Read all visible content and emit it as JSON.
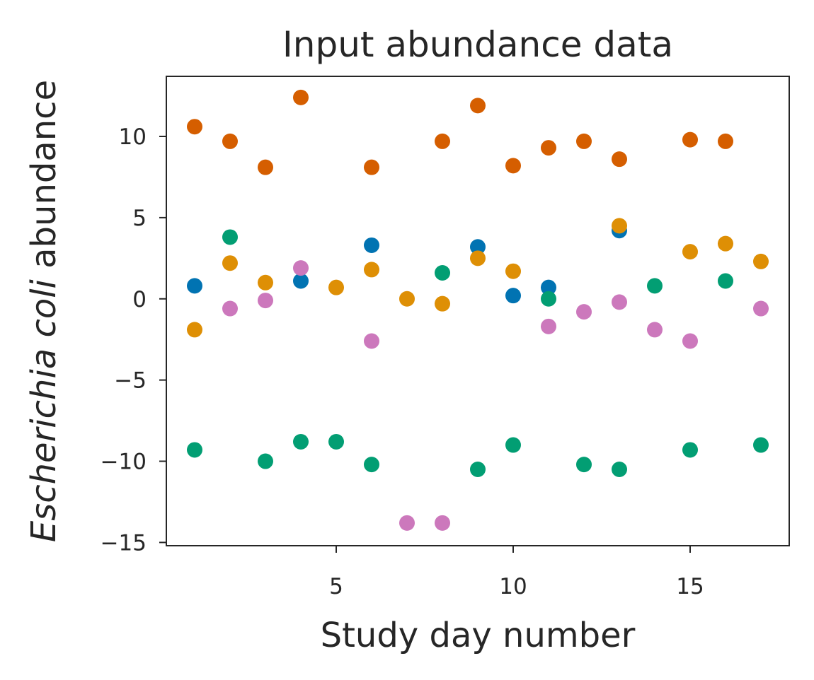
{
  "chart_data": {
    "type": "scatter",
    "title": "Input abundance data",
    "xlabel": "Study day number",
    "ylabel_italic": "Escherichia coli",
    "ylabel_rest": " abundance",
    "xlim": [
      0.2,
      17.8
    ],
    "ylim": [
      -15.2,
      13.7
    ],
    "x_ticks": [
      5,
      10,
      15
    ],
    "y_ticks": [
      10,
      5,
      0,
      -5,
      -10,
      -15
    ],
    "x_tick_labels": [
      "5",
      "10",
      "15"
    ],
    "y_tick_labels": [
      "10",
      "5",
      "0",
      "−5",
      "−10",
      "−15"
    ],
    "grid": false,
    "series": [
      {
        "color": "#0173b2",
        "points": [
          [
            1,
            0.8
          ],
          [
            4,
            1.1
          ],
          [
            6,
            3.3
          ],
          [
            9,
            3.2
          ],
          [
            10,
            0.2
          ],
          [
            11,
            0.7
          ],
          [
            13,
            4.2
          ]
        ]
      },
      {
        "color": "#de8f05",
        "points": [
          [
            1,
            -1.9
          ],
          [
            2,
            2.2
          ],
          [
            3,
            1.0
          ],
          [
            5,
            0.7
          ],
          [
            6,
            1.8
          ],
          [
            7,
            0.0
          ],
          [
            8,
            -0.3
          ],
          [
            9,
            2.5
          ],
          [
            10,
            1.7
          ],
          [
            13,
            4.5
          ],
          [
            15,
            2.9
          ],
          [
            16,
            3.4
          ],
          [
            17,
            2.3
          ]
        ]
      },
      {
        "color": "#029e73",
        "points": [
          [
            1,
            -9.3
          ],
          [
            2,
            3.8
          ],
          [
            3,
            -10.0
          ],
          [
            4,
            -8.8
          ],
          [
            5,
            -8.8
          ],
          [
            6,
            -10.2
          ],
          [
            8,
            1.6
          ],
          [
            9,
            -10.5
          ],
          [
            10,
            -9.0
          ],
          [
            11,
            0.0
          ],
          [
            12,
            -10.2
          ],
          [
            13,
            -10.5
          ],
          [
            14,
            0.8
          ],
          [
            15,
            -9.3
          ],
          [
            16,
            1.1
          ],
          [
            17,
            -9.0
          ]
        ]
      },
      {
        "color": "#d55e00",
        "points": [
          [
            1,
            10.6
          ],
          [
            2,
            9.7
          ],
          [
            3,
            8.1
          ],
          [
            4,
            12.4
          ],
          [
            6,
            8.1
          ],
          [
            8,
            9.7
          ],
          [
            9,
            11.9
          ],
          [
            10,
            8.2
          ],
          [
            11,
            9.3
          ],
          [
            12,
            9.7
          ],
          [
            13,
            8.6
          ],
          [
            15,
            9.8
          ],
          [
            16,
            9.7
          ]
        ]
      },
      {
        "color": "#cc78bc",
        "points": [
          [
            2,
            -0.6
          ],
          [
            3,
            -0.1
          ],
          [
            4,
            1.9
          ],
          [
            6,
            -2.6
          ],
          [
            7,
            -13.8
          ],
          [
            8,
            -13.8
          ],
          [
            11,
            -1.7
          ],
          [
            12,
            -0.8
          ],
          [
            13,
            -0.2
          ],
          [
            14,
            -1.9
          ],
          [
            15,
            -2.6
          ],
          [
            17,
            -0.6
          ]
        ]
      }
    ]
  }
}
